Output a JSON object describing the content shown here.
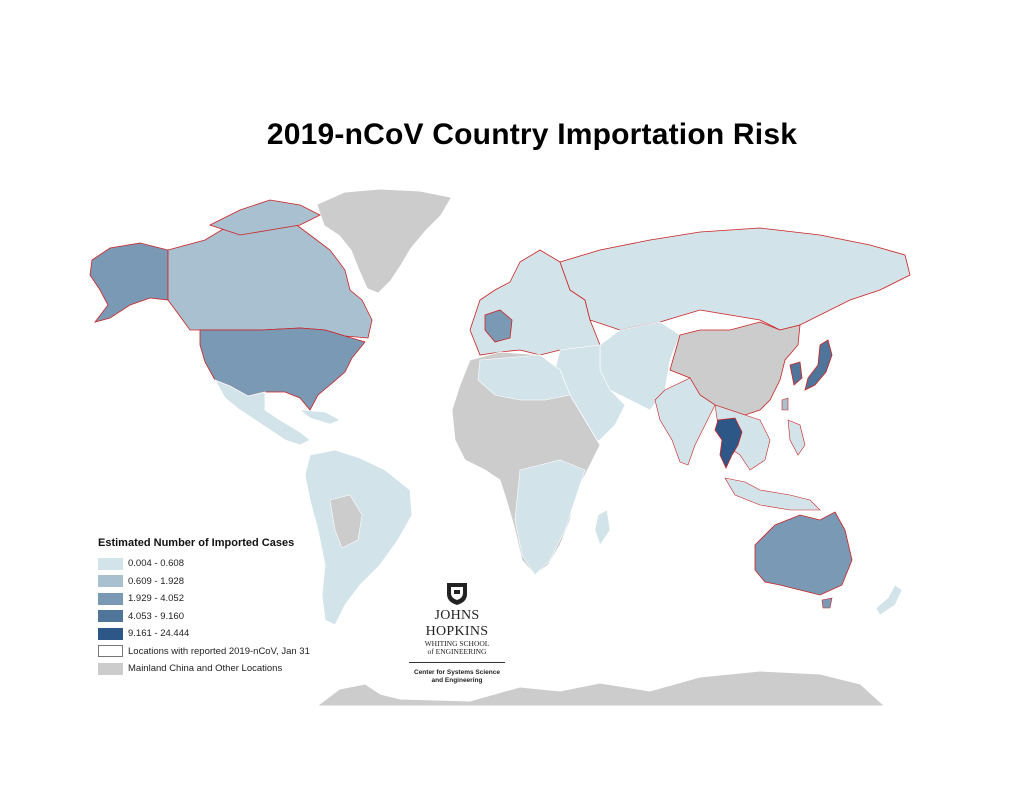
{
  "title": "2019-nCoV Country Importation Risk",
  "legend": {
    "title": "Estimated Number of Imported Cases",
    "items": [
      {
        "label": "0.004 - 0.608",
        "color": "#d2e3ea"
      },
      {
        "label": "0.609 - 1.928",
        "color": "#a9c0d1"
      },
      {
        "label": "1.929 - 4.052",
        "color": "#7a99b5"
      },
      {
        "label": "4.053 - 9.160",
        "color": "#4f759a"
      },
      {
        "label": "9.161 - 24.444",
        "color": "#2c5787"
      },
      {
        "label": "Locations with reported 2019-nCoV, Jan 31",
        "color": "#ffffff",
        "outline": "#cc2222"
      },
      {
        "label": "Mainland China and Other Locations",
        "color": "#cccccc"
      }
    ]
  },
  "logo": {
    "name": "JOHNS HOPKINS",
    "school_line1": "WHITING SCHOOL",
    "school_line2": "of ENGINEERING",
    "center_line1": "Center for Systems Science",
    "center_line2": "and Engineering"
  },
  "regions": [
    {
      "name": "Greenland",
      "class": "other",
      "reported": false
    },
    {
      "name": "Alaska",
      "class": "1.929 - 4.052",
      "reported": true
    },
    {
      "name": "Canada",
      "class": "0.609 - 1.928",
      "reported": true
    },
    {
      "name": "United States",
      "class": "1.929 - 4.052",
      "reported": true
    },
    {
      "name": "Mexico",
      "class": "0.004 - 0.608",
      "reported": false
    },
    {
      "name": "South America",
      "class": "0.004 - 0.608",
      "reported": false
    },
    {
      "name": "Europe",
      "class": "0.004 - 0.608",
      "reported": true
    },
    {
      "name": "France",
      "class": "1.929 - 4.052",
      "reported": true
    },
    {
      "name": "Russia",
      "class": "0.004 - 0.608",
      "reported": true
    },
    {
      "name": "Mainland China",
      "class": "other",
      "reported": true
    },
    {
      "name": "Japan",
      "class": "4.053 - 9.160",
      "reported": true
    },
    {
      "name": "South Korea",
      "class": "4.053 - 9.160",
      "reported": true
    },
    {
      "name": "Thailand",
      "class": "9.161 - 24.444",
      "reported": true
    },
    {
      "name": "Australia",
      "class": "1.929 - 4.052",
      "reported": true
    },
    {
      "name": "New Zealand",
      "class": "0.004 - 0.608",
      "reported": false
    },
    {
      "name": "Africa",
      "class": "other",
      "reported": false
    },
    {
      "name": "Antarctica",
      "class": "other",
      "reported": false
    }
  ]
}
